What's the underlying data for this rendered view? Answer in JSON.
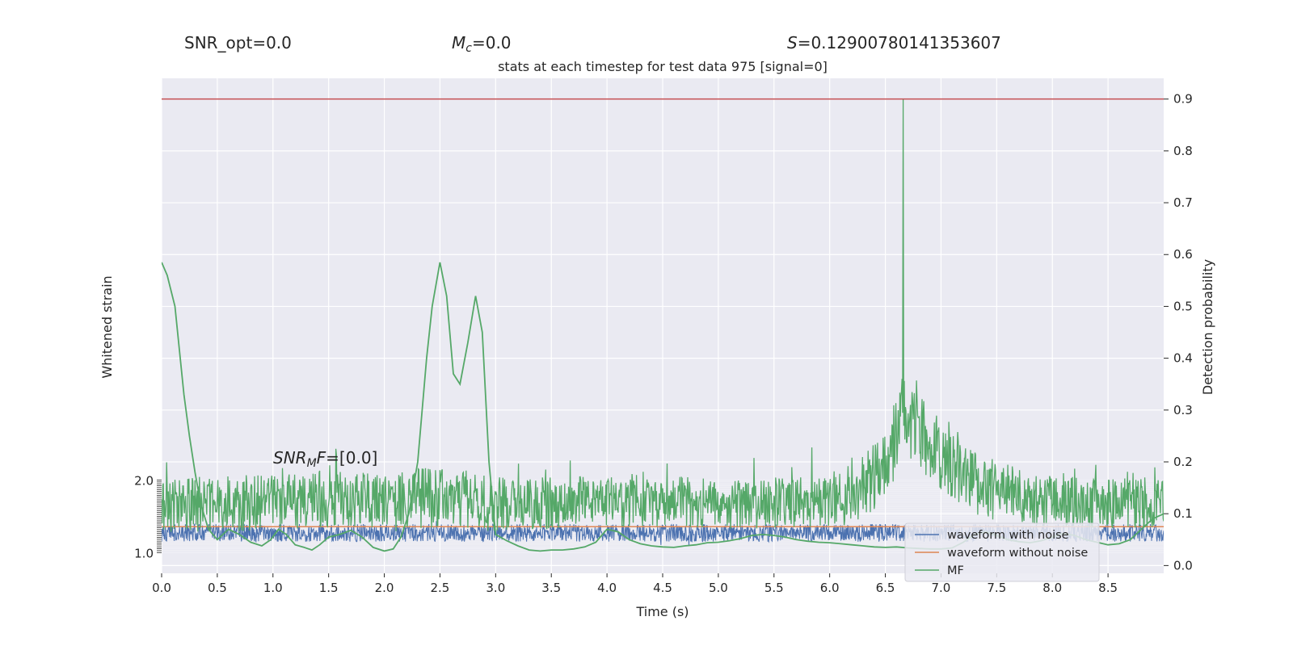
{
  "header": {
    "snr_opt": "SNR_opt=0.0",
    "mc_symbol": "M",
    "mc_sub": "c",
    "mc_value": "=0.0",
    "s_symbol": "S",
    "s_value": "=0.12900780141353607"
  },
  "snr_mf": {
    "prefix": "SNR",
    "sub": "M",
    "mid": "F",
    "value": "=[0.0]"
  },
  "chart_data": {
    "type": "line",
    "title": "stats at each timestep for test data 975 [signal=0]",
    "xlabel": "Time (s)",
    "ylabel_left": "Whitened strain",
    "ylabel_right": "Detection probability",
    "xlim": [
      0.0,
      9.0
    ],
    "x_ticks": [
      0.0,
      0.5,
      1.0,
      1.5,
      2.0,
      2.5,
      3.0,
      3.5,
      4.0,
      4.5,
      5.0,
      5.5,
      6.0,
      6.5,
      7.0,
      7.5,
      8.0,
      8.5
    ],
    "x_tick_labels": [
      "0.0",
      "0.5",
      "1.0",
      "1.5",
      "2.0",
      "2.5",
      "3.0",
      "3.5",
      "4.0",
      "4.5",
      "5.0",
      "5.5",
      "6.0",
      "6.5",
      "7.0",
      "7.5",
      "8.0",
      "8.5"
    ],
    "ylim_right": [
      -0.015,
      0.94
    ],
    "y_ticks_right": [
      0.0,
      0.1,
      0.2,
      0.3,
      0.4,
      0.5,
      0.6,
      0.7,
      0.8,
      0.9
    ],
    "y_tick_labels_right": [
      "0.0",
      "0.1",
      "0.2",
      "0.3",
      "0.4",
      "0.5",
      "0.6",
      "0.7",
      "0.8",
      "0.9"
    ],
    "y_tick_labels_left_visible": [
      "2.0",
      "1.0"
    ],
    "threshold": 0.9,
    "grid": true,
    "legend_position": "lower-right",
    "series": [
      {
        "name": "waveform with noise",
        "color": "#4c72b0"
      },
      {
        "name": "waveform without noise",
        "color": "#dd8452"
      },
      {
        "name": "MF",
        "color": "#55a868"
      }
    ],
    "mf_smooth_curve": {
      "x": [
        0.0,
        0.05,
        0.12,
        0.2,
        0.25,
        0.3,
        0.35,
        0.42,
        0.5,
        0.6,
        0.7,
        0.8,
        0.9,
        0.98,
        1.05,
        1.12,
        1.2,
        1.28,
        1.35,
        1.42,
        1.5,
        1.6,
        1.7,
        1.8,
        1.9,
        2.0,
        2.08,
        2.15,
        2.22,
        2.3,
        2.38,
        2.43,
        2.5,
        2.56,
        2.62,
        2.68,
        2.75,
        2.82,
        2.88,
        2.94,
        3.0,
        3.1,
        3.2,
        3.3,
        3.4,
        3.5,
        3.6,
        3.7,
        3.8,
        3.9,
        4.0,
        4.1,
        4.2,
        4.3,
        4.4,
        4.5,
        4.6,
        4.7,
        4.8,
        4.9,
        5.0,
        5.1,
        5.2,
        5.3,
        5.4,
        5.5,
        5.6,
        5.7,
        5.8,
        5.9,
        6.0,
        6.1,
        6.2,
        6.3,
        6.4,
        6.5,
        6.6,
        6.7,
        6.8,
        6.9,
        7.0,
        7.1,
        7.2,
        7.3,
        7.4,
        7.5,
        7.6,
        7.7,
        7.8,
        7.9,
        8.0,
        8.1,
        8.2,
        8.3,
        8.4,
        8.5,
        8.6,
        8.7,
        8.8,
        8.9,
        9.0
      ],
      "y": [
        0.585,
        0.56,
        0.5,
        0.33,
        0.25,
        0.18,
        0.12,
        0.07,
        0.05,
        0.07,
        0.06,
        0.045,
        0.038,
        0.05,
        0.07,
        0.06,
        0.04,
        0.035,
        0.03,
        0.04,
        0.055,
        0.06,
        0.068,
        0.055,
        0.035,
        0.028,
        0.032,
        0.055,
        0.1,
        0.2,
        0.4,
        0.5,
        0.585,
        0.52,
        0.37,
        0.35,
        0.43,
        0.52,
        0.45,
        0.2,
        0.06,
        0.048,
        0.038,
        0.03,
        0.028,
        0.03,
        0.03,
        0.032,
        0.036,
        0.045,
        0.07,
        0.065,
        0.05,
        0.042,
        0.038,
        0.036,
        0.035,
        0.038,
        0.04,
        0.044,
        0.045,
        0.048,
        0.052,
        0.058,
        0.06,
        0.058,
        0.055,
        0.05,
        0.047,
        0.045,
        0.044,
        0.042,
        0.04,
        0.038,
        0.036,
        0.035,
        0.036,
        0.034,
        0.033,
        0.032,
        0.032,
        0.034,
        0.045,
        0.06,
        0.065,
        0.058,
        0.05,
        0.046,
        0.044,
        0.048,
        0.055,
        0.062,
        0.058,
        0.05,
        0.045,
        0.04,
        0.042,
        0.05,
        0.07,
        0.09,
        0.1
      ]
    },
    "mf_noisy_envelope": {
      "x": [
        0.0,
        0.5,
        1.0,
        1.5,
        2.0,
        2.4,
        2.6,
        2.9,
        3.2,
        3.6,
        4.0,
        4.4,
        4.8,
        5.2,
        5.6,
        5.9,
        6.1,
        6.3,
        6.45,
        6.55,
        6.62,
        6.66,
        6.7,
        6.78,
        6.9,
        7.05,
        7.2,
        7.4,
        7.6,
        7.8,
        8.0,
        8.3,
        8.6,
        9.0
      ],
      "baseline": [
        0.115,
        0.12,
        0.12,
        0.13,
        0.12,
        0.13,
        0.14,
        0.12,
        0.12,
        0.12,
        0.125,
        0.125,
        0.12,
        0.12,
        0.12,
        0.125,
        0.13,
        0.15,
        0.18,
        0.22,
        0.27,
        0.3,
        0.29,
        0.26,
        0.24,
        0.2,
        0.17,
        0.15,
        0.14,
        0.13,
        0.125,
        0.12,
        0.12,
        0.12
      ],
      "amplitude": [
        0.05,
        0.055,
        0.055,
        0.055,
        0.055,
        0.06,
        0.06,
        0.055,
        0.05,
        0.05,
        0.05,
        0.05,
        0.05,
        0.05,
        0.05,
        0.05,
        0.055,
        0.06,
        0.07,
        0.07,
        0.08,
        0.09,
        0.08,
        0.075,
        0.07,
        0.065,
        0.06,
        0.06,
        0.055,
        0.055,
        0.05,
        0.05,
        0.05,
        0.05
      ],
      "peak_x": 6.66,
      "peak_y": 0.9
    },
    "strain_band_prob_equiv": {
      "center": 0.063,
      "half_width": 0.017
    }
  }
}
